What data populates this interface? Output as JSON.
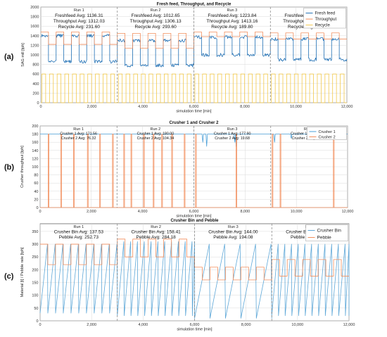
{
  "chart_data": [
    {
      "panel": "(a)",
      "type": "line",
      "title": "Fresh feed, Throughput, and Recycle",
      "xlabel": "simulation time [min]",
      "ylabel": "SAG mill [tph]",
      "xlim": [
        0,
        12000
      ],
      "ylim": [
        0,
        2000
      ],
      "xticks": [
        0,
        2000,
        4000,
        6000,
        8000,
        10000,
        12000
      ],
      "xtick_labels": [
        "0",
        "2,000",
        "4,000",
        "6,000",
        "8,000",
        "10,000",
        "12,000"
      ],
      "yticks": [
        0,
        200,
        400,
        600,
        800,
        1000,
        1200,
        1400,
        1600,
        1800,
        2000
      ],
      "ytick_labels": [
        "0",
        "200",
        "400",
        "600",
        "800",
        "1000",
        "1200",
        "1400",
        "1600",
        "1800",
        "2000"
      ],
      "grid": true,
      "legend": "top-right",
      "run_boundaries": [
        3000,
        6000,
        9000
      ],
      "runs": [
        {
          "label": "Run 1",
          "stats": [
            "Freshfeed Avg: 1136.31",
            "Throughput Avg: 1312.03",
            "Recycle Avg: 231.60"
          ]
        },
        {
          "label": "Run 2",
          "stats": [
            "Freshfeed Avg: 1012.65",
            "Throughput Avg: 1306.13",
            "Recycle Avg: 293.60"
          ]
        },
        {
          "label": "Run 3",
          "stats": [
            "Freshfeed Avg: 1223.84",
            "Throughput Avg: 1413.16",
            "Recycle Avg: 189.80"
          ]
        },
        {
          "label": "Run 4",
          "stats": [
            "Freshfeed Avg: 1173.29",
            "Throughput Avg: 1379.52",
            "Recycle Avg: 205.60"
          ]
        }
      ],
      "series": [
        {
          "name": "Fresh feed",
          "color": "#1f6fb4",
          "pattern": "noisy-square",
          "period": 300,
          "segments": [
            [
              0,
              3000,
              1400,
              860
            ],
            [
              3000,
              6000,
              1300,
              780
            ],
            [
              6000,
              9000,
              1370,
              1000
            ],
            [
              9000,
              12000,
              1330,
              900
            ]
          ]
        },
        {
          "name": "Throughput",
          "color": "#f28e5c",
          "pattern": "square",
          "period": 300,
          "segments": [
            [
              0,
              3000,
              1480,
              1220
            ],
            [
              3000,
              6000,
              1450,
              1140
            ],
            [
              6000,
              9000,
              1480,
              1380
            ],
            [
              9000,
              12000,
              1460,
              1330
            ]
          ]
        },
        {
          "name": "Recycle",
          "color": "#f2c94c",
          "pattern": "pulse",
          "period": 300,
          "duty": 0.5,
          "segments": [
            [
              0,
              12000,
              600,
              0
            ]
          ]
        }
      ]
    },
    {
      "panel": "(b)",
      "type": "line",
      "title": "Crusher 1 and Crusher 2",
      "xlabel": "simulation time [min]",
      "ylabel": "Crusher throughput [tph]",
      "xlim": [
        0,
        12000
      ],
      "ylim": [
        0,
        200
      ],
      "xticks": [
        0,
        2000,
        4000,
        6000,
        8000,
        10000,
        12000
      ],
      "xtick_labels": [
        "0",
        "2,000",
        "4,000",
        "6,000",
        "8,000",
        "10,000",
        "12,000"
      ],
      "yticks": [
        0,
        20,
        40,
        60,
        80,
        100,
        120,
        140,
        160,
        180,
        200
      ],
      "ytick_labels": [
        "0",
        "20",
        "40",
        "60",
        "80",
        "100",
        "120",
        "140",
        "160",
        "180",
        "200"
      ],
      "grid": true,
      "legend": "top-right",
      "run_boundaries": [
        3000,
        6000,
        9000
      ],
      "runs": [
        {
          "label": "Run 1",
          "stats": [
            "Crusher 1 Avg: 171.56",
            "Crusher 2 Avg: 76.32"
          ]
        },
        {
          "label": "Run 2",
          "stats": [
            "Crusher 1 Avg: 180.00",
            "Crusher 2 Avg: 104.34"
          ]
        },
        {
          "label": "Run 3",
          "stats": [
            "Crusher 1 Avg: 177.90",
            "Crusher 2 Avg: 19.68"
          ]
        },
        {
          "label": "Run 4",
          "stats": [
            "Crusher 1 Avg: 179.10",
            "Crusher 2 Avg: 31.56"
          ]
        }
      ],
      "series": [
        {
          "name": "Crusher 1",
          "color": "#4a9fd8",
          "pattern": "dips",
          "level": 180,
          "dips": [
            [
              6350,
              160
            ],
            [
              6500,
              150
            ],
            [
              7600,
              160
            ],
            [
              7650,
              150
            ],
            [
              9150,
              160
            ],
            [
              9800,
              170
            ],
            [
              10650,
              175
            ],
            [
              11500,
              172
            ]
          ]
        },
        {
          "name": "Crusher 2",
          "color": "#f28e5c",
          "pattern": "pulse-train",
          "level": 180,
          "pulse_times": [
            330,
            820,
            1320,
            1860,
            2340,
            2840,
            3280,
            3560,
            4050,
            4430,
            4760,
            5150,
            5640,
            6080,
            7660,
            9070,
            9380,
            11460
          ]
        }
      ]
    },
    {
      "panel": "(c)",
      "type": "line",
      "title": "Crusher Bin and Pebble",
      "xlabel": "simulation time [min]",
      "ylabel": "Material [t] / Pebble rate [tph]",
      "xlim": [
        0,
        12000
      ],
      "ylim": [
        0,
        380
      ],
      "xticks": [
        0,
        2000,
        4000,
        6000,
        8000,
        10000,
        12000
      ],
      "xtick_labels": [
        "0",
        "2,000",
        "4,000",
        "6,000",
        "8,000",
        "10,000",
        "12,000"
      ],
      "yticks": [
        0,
        50,
        100,
        150,
        200,
        250,
        300,
        350
      ],
      "ytick_labels": [
        "0",
        "50",
        "100",
        "150",
        "200",
        "250",
        "300",
        "350"
      ],
      "grid": true,
      "legend": "top-right",
      "run_boundaries": [
        3000,
        6000,
        9000
      ],
      "runs": [
        {
          "label": "Run 1",
          "stats": [
            "Crusher Bin Avg: 137.53",
            "Pebble Avg: 252.73"
          ]
        },
        {
          "label": "Run 2",
          "stats": [
            "Crusher Bin Avg: 158.41",
            "Pebble Avg: 284.18"
          ]
        },
        {
          "label": "Run 3",
          "stats": [
            "Crusher Bin Avg: 144.00",
            "Pebble Avg: 194.08"
          ]
        },
        {
          "label": "Run 4",
          "stats": [
            "Crusher Bin Avg: 114.27",
            "Pebble Avg: 214.78"
          ]
        }
      ],
      "series": [
        {
          "name": "Crusher Bin",
          "color": "#5fa8d8",
          "pattern": "sawtooth",
          "segments": [
            [
              0,
              3000,
              300,
              300,
              30
            ],
            [
              3000,
              6000,
              265,
              310,
              20
            ],
            [
              6000,
              9000,
              600,
              300,
              10
            ],
            [
              9000,
              12000,
              260,
              300,
              20
            ]
          ]
        },
        {
          "name": "Pebble",
          "color": "#f28e5c",
          "pattern": "square",
          "period": 300,
          "segments": [
            [
              0,
              3000,
              300,
              220
            ],
            [
              3000,
              6000,
              320,
              250
            ],
            [
              6000,
              9000,
              210,
              160
            ],
            [
              9000,
              12000,
              240,
              175
            ]
          ]
        }
      ]
    }
  ]
}
